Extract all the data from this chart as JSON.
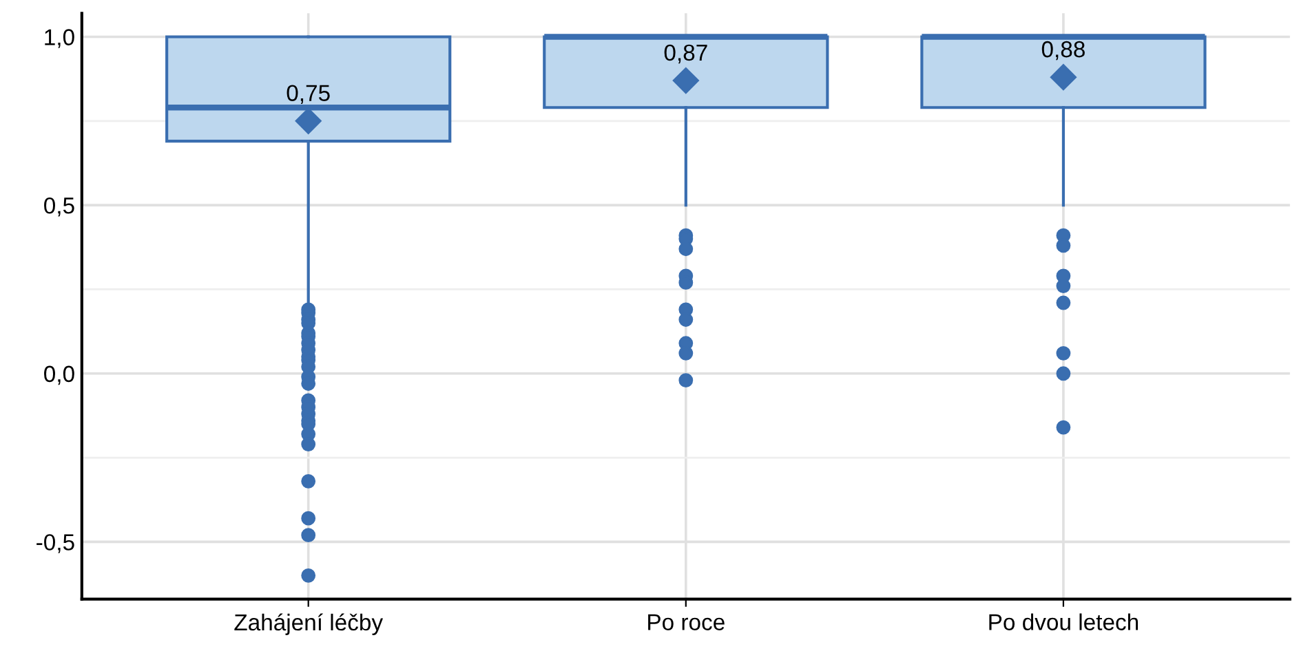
{
  "chart_data": {
    "type": "box",
    "categories": [
      "Zahájení léčby",
      "Po roce",
      "Po dvou letech"
    ],
    "boxes": [
      {
        "low": 0.2,
        "q1": 0.69,
        "median": 0.79,
        "q3": 1.0,
        "high": 1.0,
        "mean": 0.75,
        "outliers": [
          0.19,
          0.18,
          0.16,
          0.15,
          0.12,
          0.11,
          0.09,
          0.07,
          0.05,
          0.04,
          0.02,
          -0.01,
          -0.03,
          -0.08,
          -0.1,
          -0.12,
          -0.14,
          -0.15,
          -0.18,
          -0.21,
          -0.32,
          -0.43,
          -0.48,
          -0.6
        ]
      },
      {
        "low": 0.5,
        "q1": 0.79,
        "median": 1.0,
        "q3": 1.0,
        "high": 1.0,
        "mean": 0.87,
        "outliers": [
          0.41,
          0.4,
          0.37,
          0.29,
          0.27,
          0.19,
          0.16,
          0.09,
          0.06,
          -0.02
        ]
      },
      {
        "low": 0.5,
        "q1": 0.79,
        "median": 1.0,
        "q3": 1.0,
        "high": 1.0,
        "mean": 0.88,
        "outliers": [
          0.41,
          0.38,
          0.29,
          0.26,
          0.21,
          0.06,
          0.0,
          -0.16
        ]
      }
    ],
    "color": "#bdd7ee",
    "annotations": [
      "0,75",
      "0,87",
      "0,88"
    ],
    "ylim": [
      -0.67,
      1.07
    ],
    "yticks": [
      {
        "value": -0.5,
        "label": "-0,5"
      },
      {
        "value": -0.25,
        "label": null
      },
      {
        "value": 0.0,
        "label": "0,0"
      },
      {
        "value": 0.25,
        "label": null
      },
      {
        "value": 0.5,
        "label": "0,5"
      },
      {
        "value": 0.75,
        "label": null
      },
      {
        "value": 1.0,
        "label": "1,0"
      }
    ],
    "grid": true
  }
}
